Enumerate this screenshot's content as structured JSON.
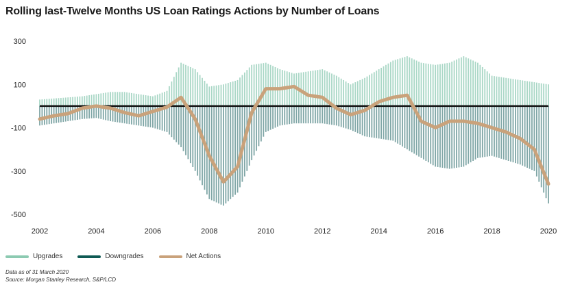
{
  "title": "Rolling last-Twelve Months US Loan Ratings Actions by Number of Loans",
  "legend": {
    "upgrades_label": "Upgrades",
    "downgrades_label": "Downgrades",
    "net_label": "Net Actions"
  },
  "notes": {
    "date_line": "Data as of 31 March 2020",
    "source_line": "Source: Morgan Stanley Research, S&P/LCD"
  },
  "colors": {
    "upgrades": "#a9d7c6",
    "downgrades": "#7fa6a6",
    "net": "#c9a27b",
    "zero_line": "#111111"
  },
  "chart_data": {
    "type": "bar",
    "title": "Rolling last-Twelve Months US Loan Ratings Actions by Number of Loans",
    "xlabel": "",
    "ylabel": "",
    "ylim": [
      -500,
      300
    ],
    "xlim": [
      2002,
      2020
    ],
    "yticks": [
      300,
      100,
      -100,
      -300,
      -500
    ],
    "xticks": [
      2002,
      2004,
      2006,
      2008,
      2010,
      2012,
      2014,
      2016,
      2018,
      2020
    ],
    "x": [
      2002.0,
      2002.5,
      2003.0,
      2003.5,
      2004.0,
      2004.5,
      2005.0,
      2005.5,
      2006.0,
      2006.5,
      2007.0,
      2007.5,
      2008.0,
      2008.5,
      2009.0,
      2009.5,
      2010.0,
      2010.5,
      2011.0,
      2011.5,
      2012.0,
      2012.5,
      2013.0,
      2013.5,
      2014.0,
      2014.5,
      2015.0,
      2015.5,
      2016.0,
      2016.5,
      2017.0,
      2017.5,
      2018.0,
      2018.5,
      2019.0,
      2019.5,
      2020.0
    ],
    "series": [
      {
        "name": "Upgrades",
        "values": [
          30,
          35,
          40,
          45,
          55,
          65,
          65,
          55,
          45,
          70,
          200,
          170,
          90,
          100,
          120,
          190,
          200,
          170,
          150,
          160,
          170,
          140,
          100,
          130,
          170,
          210,
          230,
          200,
          190,
          200,
          230,
          200,
          140,
          130,
          120,
          110,
          100
        ]
      },
      {
        "name": "Downgrades",
        "values": [
          -90,
          -80,
          -70,
          -60,
          -55,
          -70,
          -80,
          -90,
          -100,
          -120,
          -190,
          -300,
          -430,
          -460,
          -400,
          -250,
          -120,
          -90,
          -80,
          -80,
          -80,
          -90,
          -110,
          -140,
          -150,
          -160,
          -200,
          -240,
          -280,
          -290,
          -280,
          -240,
          -230,
          -250,
          -270,
          -300,
          -450
        ]
      },
      {
        "name": "Net Actions",
        "values": [
          -60,
          -45,
          -35,
          -10,
          0,
          -10,
          -30,
          -45,
          -25,
          -5,
          40,
          -60,
          -230,
          -350,
          -280,
          -30,
          80,
          80,
          90,
          50,
          40,
          -10,
          -40,
          -20,
          20,
          40,
          50,
          -70,
          -100,
          -70,
          -70,
          -80,
          -100,
          -120,
          -150,
          -200,
          -360
        ]
      }
    ]
  }
}
